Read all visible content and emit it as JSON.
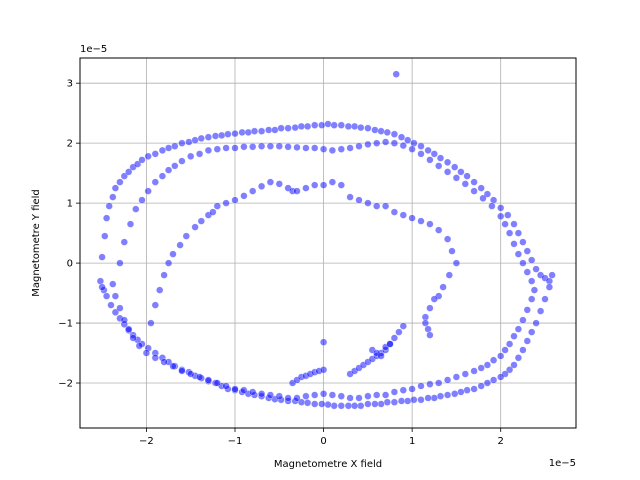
{
  "chart_data": {
    "type": "scatter",
    "title": "",
    "xlabel": "Magnetometre X field",
    "ylabel": "Magnetometre Y field",
    "x_offset_label": "1e−5",
    "y_offset_label": "1e−5",
    "xlim": [
      -2.75,
      2.85
    ],
    "ylim": [
      -2.75,
      3.42
    ],
    "x_ticks": [
      -2,
      -1,
      0,
      1,
      2
    ],
    "x_tick_labels": [
      "−2",
      "−1",
      "0",
      "1",
      "2"
    ],
    "y_ticks": [
      -2,
      -1,
      0,
      1,
      2,
      3
    ],
    "y_tick_labels": [
      "−2",
      "−1",
      "0",
      "1",
      "2",
      "3"
    ],
    "grid": true,
    "marker_color": "#0000ff",
    "marker_edge_color": "#ffffff",
    "marker_alpha": 0.5,
    "series": [
      {
        "x": [
          -2.52,
          -2.5,
          -2.47,
          -2.45,
          -2.42,
          -2.38,
          -2.35,
          -2.3,
          -2.25,
          -2.2,
          -2.15,
          -2.1,
          -2.05,
          -1.98,
          -1.9,
          -1.82,
          -1.75,
          -1.68,
          -1.6,
          -1.52,
          -1.45,
          -1.38,
          -1.3,
          -1.22,
          -1.15,
          -1.08,
          -1.0,
          -0.92,
          -0.85,
          -0.78,
          -0.7,
          -0.62,
          -0.55,
          -0.48,
          -0.4,
          -0.32,
          -0.25,
          -0.18,
          -0.1,
          -0.02,
          0.05,
          0.12,
          0.2,
          0.28,
          0.35,
          0.42,
          0.5,
          0.58,
          0.65,
          0.72,
          0.8,
          0.88,
          0.95,
          1.02,
          1.1,
          1.18,
          1.25,
          1.32,
          1.4,
          1.48,
          1.55,
          1.62,
          1.7,
          1.78,
          1.85,
          1.92,
          2.0,
          2.08,
          2.15,
          2.2,
          2.25,
          2.3,
          2.35,
          2.4,
          2.45,
          2.5,
          2.55,
          2.58,
          2.55,
          2.5,
          2.45,
          2.4,
          2.35,
          2.3,
          2.25,
          2.2,
          2.15,
          2.1,
          2.05,
          2.0,
          1.92,
          1.85,
          1.78,
          1.7,
          1.62,
          1.55,
          1.48,
          1.4,
          1.32,
          1.25,
          1.18,
          1.1,
          1.02,
          0.95,
          0.88,
          0.8,
          0.72,
          0.65,
          0.58,
          0.5,
          0.42,
          0.35,
          0.28,
          0.2,
          0.12,
          0.05,
          -0.02,
          -0.1,
          -0.18,
          -0.25,
          -0.32,
          -0.4,
          -0.48,
          -0.55,
          -0.62,
          -0.7,
          -0.78,
          -0.85,
          -0.92,
          -1.0,
          -1.08,
          -1.15,
          -1.22,
          -1.3,
          -1.38,
          -1.45,
          -1.52,
          -1.6,
          -1.68,
          -1.75,
          -1.82,
          -1.9,
          -1.98,
          -2.05,
          -2.1,
          -2.15,
          -2.2,
          -2.25,
          -2.3,
          -2.35,
          -2.4,
          -2.45,
          -2.48,
          -2.5
        ],
        "y": [
          -0.3,
          0.1,
          0.45,
          0.75,
          0.95,
          1.1,
          1.25,
          1.35,
          1.45,
          1.52,
          1.6,
          1.65,
          1.72,
          1.78,
          1.82,
          1.88,
          1.92,
          1.95,
          2.0,
          2.02,
          2.05,
          2.08,
          2.1,
          2.12,
          2.13,
          2.15,
          2.16,
          2.18,
          2.18,
          2.2,
          2.2,
          2.22,
          2.22,
          2.25,
          2.25,
          2.26,
          2.28,
          2.28,
          2.3,
          2.3,
          2.32,
          2.3,
          2.3,
          2.28,
          2.28,
          2.26,
          2.25,
          2.22,
          2.2,
          2.18,
          2.15,
          2.1,
          2.05,
          2.0,
          1.95,
          1.88,
          1.82,
          1.75,
          1.68,
          1.6,
          1.52,
          1.45,
          1.35,
          1.25,
          1.15,
          1.05,
          0.92,
          0.8,
          0.65,
          0.5,
          0.35,
          0.2,
          0.05,
          -0.1,
          -0.2,
          -0.25,
          -0.3,
          -0.2,
          -0.4,
          -0.6,
          -0.8,
          -1.0,
          -1.15,
          -1.3,
          -1.45,
          -1.58,
          -1.7,
          -1.78,
          -1.85,
          -1.9,
          -1.95,
          -2.0,
          -2.05,
          -2.1,
          -2.12,
          -2.15,
          -2.18,
          -2.2,
          -2.22,
          -2.25,
          -2.25,
          -2.28,
          -2.28,
          -2.3,
          -2.3,
          -2.32,
          -2.32,
          -2.35,
          -2.35,
          -2.35,
          -2.38,
          -2.38,
          -2.38,
          -2.38,
          -2.38,
          -2.36,
          -2.35,
          -2.35,
          -2.33,
          -2.32,
          -2.3,
          -2.3,
          -2.28,
          -2.27,
          -2.25,
          -2.22,
          -2.2,
          -2.18,
          -2.15,
          -2.12,
          -2.1,
          -2.05,
          -2.0,
          -1.97,
          -1.92,
          -1.88,
          -1.82,
          -1.78,
          -1.72,
          -1.65,
          -1.58,
          -1.5,
          -1.42,
          -1.35,
          -1.28,
          -1.2,
          -1.12,
          -1.02,
          -0.92,
          -0.82,
          -0.7,
          -0.55,
          -0.45,
          -0.4
        ]
      },
      {
        "x": [
          -2.3,
          -2.25,
          -2.18,
          -2.12,
          -2.05,
          -1.98,
          -1.9,
          -1.82,
          -1.75,
          -1.68,
          -1.6,
          -1.5,
          -1.4,
          -1.3,
          -1.2,
          -1.1,
          -1.0,
          -0.9,
          -0.8,
          -0.7,
          -0.6,
          -0.5,
          -0.4,
          -0.3,
          -0.2,
          -0.1,
          0.0,
          0.1,
          0.2,
          0.3,
          0.4,
          0.5,
          0.6,
          0.7,
          0.8,
          0.9,
          1.0,
          1.1,
          1.2,
          1.3,
          1.4,
          1.5,
          1.6,
          1.7,
          1.8,
          1.9,
          2.0,
          2.05,
          2.1,
          2.15,
          2.2,
          2.25,
          2.3,
          2.35,
          2.38,
          2.35,
          2.3,
          2.25,
          2.2,
          2.15,
          2.1,
          2.05,
          2.0,
          1.92,
          1.85,
          1.78,
          1.7,
          1.6,
          1.5,
          1.4,
          1.3,
          1.2,
          1.1,
          1.0,
          0.9,
          0.8,
          0.7,
          0.6,
          0.5,
          0.4,
          0.3,
          0.2,
          0.1,
          0.0,
          -0.1,
          -0.2,
          -0.3,
          -0.4,
          -0.5,
          -0.6,
          -0.7,
          -0.8,
          -0.9,
          -1.0,
          -1.1,
          -1.2,
          -1.3,
          -1.4,
          -1.5,
          -1.6,
          -1.7,
          -1.8,
          -1.9,
          -2.0,
          -2.08,
          -2.15,
          -2.2,
          -2.25,
          -2.3,
          -2.35,
          -2.38
        ],
        "y": [
          0.0,
          0.35,
          0.65,
          0.9,
          1.05,
          1.2,
          1.35,
          1.45,
          1.55,
          1.62,
          1.7,
          1.78,
          1.82,
          1.88,
          1.9,
          1.92,
          1.92,
          1.94,
          1.94,
          1.95,
          1.95,
          1.95,
          1.94,
          1.93,
          1.92,
          1.92,
          1.9,
          1.88,
          1.9,
          1.92,
          1.95,
          1.98,
          2.0,
          2.02,
          2.0,
          1.96,
          1.9,
          1.82,
          1.72,
          1.62,
          1.52,
          1.42,
          1.32,
          1.2,
          1.08,
          0.95,
          0.78,
          0.65,
          0.5,
          0.32,
          0.15,
          0.0,
          -0.15,
          -0.3,
          -0.45,
          -0.6,
          -0.78,
          -0.95,
          -1.1,
          -1.22,
          -1.35,
          -1.45,
          -1.55,
          -1.62,
          -1.7,
          -1.75,
          -1.8,
          -1.85,
          -1.9,
          -1.95,
          -2.0,
          -2.02,
          -2.05,
          -2.1,
          -2.12,
          -2.15,
          -2.2,
          -2.2,
          -2.22,
          -2.25,
          -2.25,
          -2.22,
          -2.2,
          -2.18,
          -2.2,
          -2.22,
          -2.25,
          -2.25,
          -2.22,
          -2.2,
          -2.18,
          -2.15,
          -2.12,
          -2.1,
          -2.05,
          -2.0,
          -1.95,
          -1.9,
          -1.85,
          -1.8,
          -1.72,
          -1.65,
          -1.58,
          -1.5,
          -1.38,
          -1.25,
          -1.1,
          -0.95,
          -0.75,
          -0.55,
          -0.35
        ]
      },
      {
        "x": [
          -1.95,
          -1.9,
          -1.85,
          -1.8,
          -1.75,
          -1.7,
          -1.62,
          -1.55,
          -1.45,
          -1.38,
          -1.3,
          -1.25,
          -1.2,
          -1.1,
          -1.0,
          -0.9,
          -0.8,
          -0.7,
          -0.6,
          -0.5,
          -0.4,
          -0.35,
          -0.3,
          -0.2,
          -0.1,
          0.0,
          0.1,
          0.2,
          0.3,
          0.4,
          0.5,
          0.6,
          0.7,
          0.8,
          0.9,
          1.0,
          1.1,
          1.2,
          1.3,
          1.4,
          1.45,
          1.5,
          1.42,
          1.35,
          1.3,
          1.25,
          1.2,
          1.15,
          1.15,
          1.18,
          1.2
        ],
        "y": [
          -1.0,
          -0.7,
          -0.45,
          -0.2,
          0.0,
          0.15,
          0.3,
          0.45,
          0.6,
          0.7,
          0.8,
          0.85,
          0.95,
          1.0,
          1.05,
          1.12,
          1.2,
          1.28,
          1.35,
          1.32,
          1.25,
          1.2,
          1.2,
          1.25,
          1.3,
          1.3,
          1.35,
          1.3,
          1.1,
          1.05,
          1.0,
          0.95,
          0.95,
          0.85,
          0.8,
          0.75,
          0.7,
          0.65,
          0.55,
          0.4,
          0.2,
          0.0,
          -0.2,
          -0.4,
          -0.55,
          -0.6,
          -0.75,
          -0.9,
          -1.0,
          -1.1,
          -1.2
        ]
      },
      {
        "x": [
          -0.35,
          -0.3,
          -0.25,
          -0.2,
          -0.15,
          -0.1,
          -0.05,
          0.0,
          0.3,
          0.35,
          0.4,
          0.45,
          0.5,
          0.55,
          0.6,
          0.65,
          0.7,
          0.75,
          0.8,
          0.85,
          0.9,
          0.55,
          0.6,
          0.65,
          0.7,
          0.75,
          0.0
        ],
        "y": [
          -2.0,
          -1.95,
          -1.9,
          -1.88,
          -1.85,
          -1.82,
          -1.8,
          -1.78,
          -1.85,
          -1.8,
          -1.75,
          -1.7,
          -1.65,
          -1.6,
          -1.55,
          -1.5,
          -1.45,
          -1.35,
          -1.25,
          -1.15,
          -1.05,
          -1.45,
          -1.5,
          -1.55,
          -1.4,
          -1.35,
          -1.32
        ]
      },
      {
        "x": [
          0.82
        ],
        "y": [
          3.15
        ]
      }
    ]
  }
}
